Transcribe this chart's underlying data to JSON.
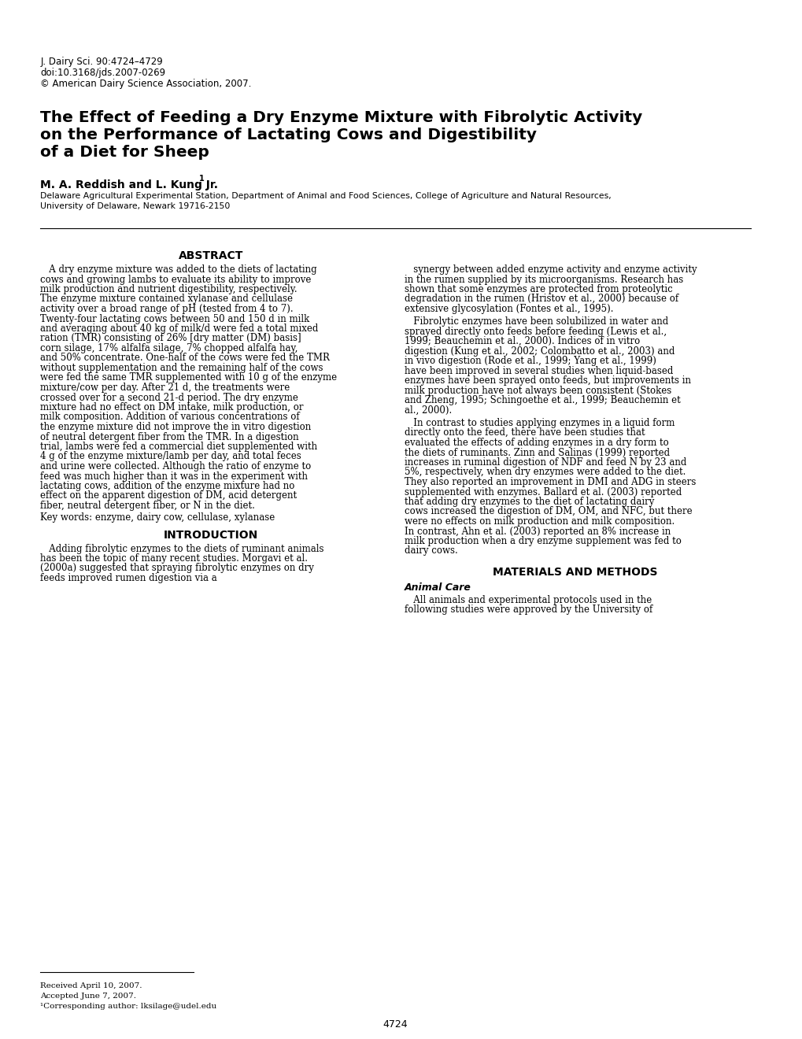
{
  "background_color": "#ffffff",
  "header_line1": "J. Dairy Sci. 90:4724–4729",
  "header_line2": "doi:10.3168/jds.2007-0269",
  "header_line3": "© American Dairy Science Association, 2007.",
  "title_line1": "The Effect of Feeding a Dry Enzyme Mixture with Fibrolytic Activity",
  "title_line2": "on the Performance of Lactating Cows and Digestibility",
  "title_line3": "of a Diet for Sheep",
  "authors": "M. A. Reddish and L. Kung Jr.",
  "authors_superscript": "1",
  "affiliation1": "Delaware Agricultural Experimental Station, Department of Animal and Food Sciences, College of Agriculture and Natural Resources,",
  "affiliation2": "University of Delaware, Newark 19716-2150",
  "abstract_heading": "ABSTRACT",
  "abstract_left": "A dry enzyme mixture was added to the diets of lactating cows and growing lambs to evaluate its ability to improve milk production and nutrient digestibility, respectively. The enzyme mixture contained xylanase and cellulase activity over a broad range of pH (tested from 4 to 7). Twenty-four lactating cows between 50 and 150 d in milk and averaging about 40 kg of milk/d were fed a total mixed ration (TMR) consisting of 26% [dry matter (DM) basis] corn silage, 17% alfalfa silage, 7% chopped alfalfa hay, and 50% concentrate. One-half of the cows were fed the TMR without supplementation and the remaining half of the cows were fed the same TMR supplemented with 10 g of the enzyme mixture/cow per day. After 21 d, the treatments were crossed over for a second 21-d period. The dry enzyme mixture had no effect on DM intake, milk production, or milk composition. Addition of various concentrations of the enzyme mixture did not improve the in vitro digestion of neutral detergent fiber from the TMR. In a digestion trial, lambs were fed a commercial diet supplemented with 4 g of the enzyme mixture/lamb per day, and total feces and urine were collected. Although the ratio of enzyme to feed was much higher than it was in the experiment with lactating cows, addition of the enzyme mixture had no effect on the apparent digestion of DM, acid detergent fiber, neutral detergent fiber, or N in the diet.",
  "keywords": "Key words: enzyme, dairy cow, cellulase, xylanase",
  "intro_heading": "INTRODUCTION",
  "intro_left": "Adding fibrolytic enzymes to the diets of ruminant animals has been the topic of many recent studies. Morgavi et al. (2000a) suggested that spraying fibrolytic enzymes on dry feeds improved rumen digestion via a",
  "intro_right_col": "synergy between added enzyme activity and enzyme activity in the rumen supplied by its microorganisms. Research has shown that some enzymes are protected from proteolytic degradation in the rumen (Hristov et al., 2000) because of extensive glycosylation (Fontes et al., 1995).\n    Fibrolytic enzymes have been solubilized in water and sprayed directly onto feeds before feeding (Lewis et al., 1999; Beauchemin et al., 2000). Indices of in vitro digestion (Kung et al., 2002; Colombatto et al., 2003) and in vivo digestion (Rode et al., 1999; Yang et al., 1999) have been improved in several studies when liquid-based enzymes have been sprayed onto feeds, but improvements in milk production have not always been consistent (Stokes and Zheng, 1995; Schingoethe et al., 1999; Beauchemin et al., 2000).\n    In contrast to studies applying enzymes in a liquid form directly onto the feed, there have been studies that evaluated the effects of adding enzymes in a dry form to the diets of ruminants. Zinn and Salinas (1999) reported increases in ruminal digestion of NDF and feed N by 23 and 5%, respectively, when dry enzymes were added to the diet. They also reported an improvement in DMI and ADG in steers supplemented with enzymes. Ballard et al. (2003) reported that adding dry enzymes to the diet of lactating dairy cows increased the digestion of DM, OM, and NFC, but there were no effects on milk production and milk composition. In contrast, Ahn et al. (2003) reported an 8% increase in milk production when a dry enzyme supplement was fed to dairy cows.",
  "materials_heading": "MATERIALS AND METHODS",
  "animal_care_heading": "Animal Care",
  "animal_care_text": "All animals and experimental protocols used in the following studies were approved by the University of",
  "footnote_line1": "Received April 10, 2007.",
  "footnote_line2": "Accepted June 7, 2007.",
  "footnote_line3": "¹Corresponding author: lksilage@udel.edu",
  "page_number": "4724"
}
